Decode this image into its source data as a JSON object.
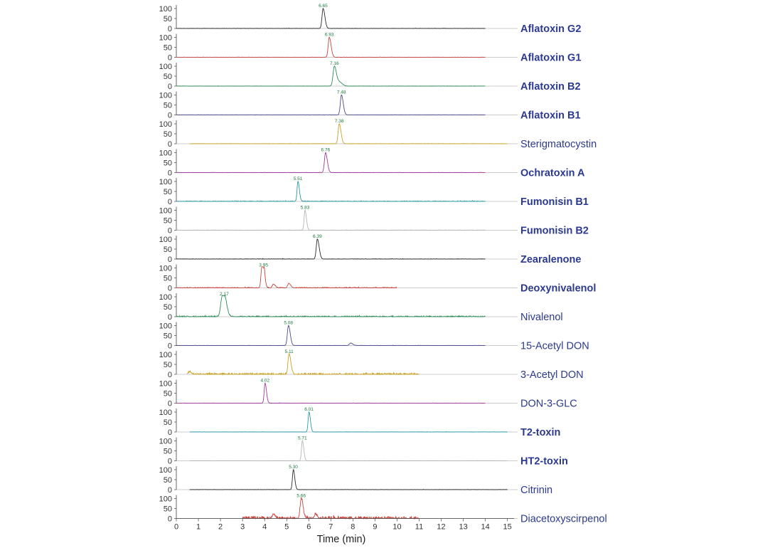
{
  "chart_data": {
    "type": "line",
    "title": "",
    "xlabel": "Time (min)",
    "ylabel": "",
    "xlim": [
      0,
      15.3
    ],
    "ylim": [
      0,
      100
    ],
    "x_ticks": [
      0,
      1,
      2,
      3,
      4,
      5,
      6,
      7,
      8,
      9,
      10,
      11,
      12,
      13,
      14,
      15
    ],
    "y_ticks": [
      0,
      50,
      100
    ],
    "grid": false,
    "legend": "none",
    "series": [
      {
        "name": "Aflatoxin G2",
        "bold": true,
        "color": "#2b2b2b",
        "rt": 6.65,
        "rt_label": "6.65",
        "height": 100,
        "width": 0.05,
        "x_start": 0.0,
        "x_end": 14.0,
        "noise": 1.0,
        "extra_peaks": []
      },
      {
        "name": "Aflatoxin G1",
        "bold": true,
        "color": "#c9453f",
        "rt": 6.93,
        "rt_label": "6.93",
        "height": 100,
        "width": 0.05,
        "x_start": 0.0,
        "x_end": 14.0,
        "noise": 1.0,
        "extra_peaks": []
      },
      {
        "name": "Aflatoxin B2",
        "bold": true,
        "color": "#2e8b57",
        "rt": 7.16,
        "rt_label": "7.16",
        "height": 100,
        "width": 0.06,
        "x_start": 0.0,
        "x_end": 14.0,
        "noise": 1.0,
        "extra_peaks": [
          {
            "rt": 7.4,
            "height": 18,
            "width": 0.08
          }
        ]
      },
      {
        "name": "Aflatoxin B1",
        "bold": true,
        "color": "#4b4b8f",
        "rt": 7.48,
        "rt_label": "7.48",
        "height": 100,
        "width": 0.05,
        "x_start": 0.0,
        "x_end": 14.0,
        "noise": 1.0,
        "extra_peaks": []
      },
      {
        "name": "Sterigmatocystin",
        "bold": false,
        "color": "#c9a227",
        "rt": 7.38,
        "rt_label": "7.38",
        "height": 100,
        "width": 0.05,
        "x_start": 0.6,
        "x_end": 15.0,
        "noise": 1.2,
        "extra_peaks": []
      },
      {
        "name": "Ochratoxin A",
        "bold": true,
        "color": "#a33a9b",
        "rt": 6.76,
        "rt_label": "6.76",
        "height": 100,
        "width": 0.05,
        "x_start": 0.0,
        "x_end": 14.0,
        "noise": 1.0,
        "extra_peaks": []
      },
      {
        "name": "Fumonisin B1",
        "bold": true,
        "color": "#2a9aa8",
        "rt": 5.51,
        "rt_label": "5.51",
        "height": 100,
        "width": 0.04,
        "x_start": 0.0,
        "x_end": 14.0,
        "noise": 2.5,
        "extra_peaks": []
      },
      {
        "name": "Fumonisin B2",
        "bold": true,
        "color": "#b5b5b5",
        "rt": 5.83,
        "rt_label": "5.83",
        "height": 100,
        "width": 0.04,
        "x_start": 0.0,
        "x_end": 14.0,
        "noise": 1.5,
        "extra_peaks": []
      },
      {
        "name": "Zearalenone",
        "bold": true,
        "color": "#2b2b2b",
        "rt": 6.39,
        "rt_label": "6.39",
        "height": 100,
        "width": 0.05,
        "x_start": 0.0,
        "x_end": 14.0,
        "noise": 1.5,
        "extra_peaks": []
      },
      {
        "name": "Deoxynivalenol",
        "bold": true,
        "color": "#c9453f",
        "rt": 3.95,
        "rt_label": "3.95",
        "height": 100,
        "width": 0.04,
        "x_start": 0.0,
        "x_end": 10.0,
        "noise": 3.0,
        "extra_peaks": [
          {
            "rt": 3.87,
            "height": 95,
            "width": 0.04
          },
          {
            "rt": 4.4,
            "height": 18,
            "width": 0.05
          },
          {
            "rt": 5.1,
            "height": 22,
            "width": 0.05
          }
        ]
      },
      {
        "name": "Nivalenol",
        "bold": false,
        "color": "#2e8b57",
        "rt": 2.17,
        "rt_label": "2.17",
        "height": 100,
        "width": 0.07,
        "x_start": 0.0,
        "x_end": 14.0,
        "noise": 4.0,
        "extra_peaks": [
          {
            "rt": 2.05,
            "height": 70,
            "width": 0.06
          }
        ]
      },
      {
        "name": "15-Acetyl DON",
        "bold": false,
        "color": "#4b4b8f",
        "rt": 5.08,
        "rt_label": "5.08",
        "height": 100,
        "width": 0.05,
        "x_start": 0.0,
        "x_end": 14.0,
        "noise": 1.0,
        "extra_peaks": [
          {
            "rt": 7.9,
            "height": 12,
            "width": 0.06
          }
        ]
      },
      {
        "name": "3-Acetyl DON",
        "bold": false,
        "color": "#c9a227",
        "rt": 5.11,
        "rt_label": "5.11",
        "height": 100,
        "width": 0.05,
        "x_start": 0.5,
        "x_end": 11.0,
        "noise": 6.0,
        "extra_peaks": [
          {
            "rt": 0.6,
            "height": 12,
            "width": 0.05
          }
        ]
      },
      {
        "name": "DON-3-GLC",
        "bold": false,
        "color": "#a33a9b",
        "rt": 4.02,
        "rt_label": "4.02",
        "height": 100,
        "width": 0.04,
        "x_start": 0.0,
        "x_end": 14.0,
        "noise": 1.0,
        "extra_peaks": []
      },
      {
        "name": "T2-toxin",
        "bold": true,
        "color": "#2a9aa8",
        "rt": 6.01,
        "rt_label": "6.01",
        "height": 100,
        "width": 0.04,
        "x_start": 0.6,
        "x_end": 15.0,
        "noise": 1.0,
        "extra_peaks": []
      },
      {
        "name": "HT2-toxin",
        "bold": true,
        "color": "#b5b5b5",
        "rt": 5.71,
        "rt_label": "5.71",
        "height": 100,
        "width": 0.04,
        "x_start": 0.6,
        "x_end": 15.0,
        "noise": 1.0,
        "extra_peaks": []
      },
      {
        "name": "Citrinin",
        "bold": false,
        "color": "#2b2b2b",
        "rt": 5.3,
        "rt_label": "5.30",
        "height": 100,
        "width": 0.04,
        "x_start": 0.6,
        "x_end": 15.0,
        "noise": 1.0,
        "extra_peaks": []
      },
      {
        "name": "Diacetoxyscirpenol",
        "bold": false,
        "color": "#c9453f",
        "rt": 5.66,
        "rt_label": "5.66",
        "height": 100,
        "width": 0.05,
        "x_start": 3.0,
        "x_end": 11.0,
        "noise": 10.0,
        "extra_peaks": [
          {
            "rt": 4.4,
            "height": 20,
            "width": 0.05
          },
          {
            "rt": 6.3,
            "height": 18,
            "width": 0.05
          }
        ]
      }
    ]
  }
}
